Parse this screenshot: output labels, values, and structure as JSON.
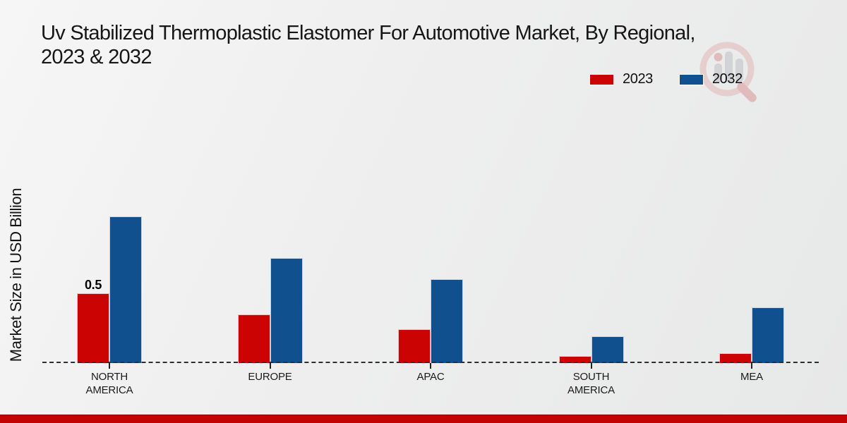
{
  "page": {
    "title_line1": "Uv Stabilized Thermoplastic Elastomer For Automotive Market, By Regional,",
    "title_line2": "2023 & 2032"
  },
  "legend": {
    "items": [
      {
        "label": "2023",
        "color": "#cb0303"
      },
      {
        "label": "2032",
        "color": "#11508f"
      }
    ]
  },
  "axes": {
    "ylabel": "Market Size in USD Billion"
  },
  "watermark": {
    "icon": "magnifier-bars-logo"
  },
  "footer": {
    "accent_color": "#c20404"
  },
  "chart_data": {
    "type": "bar",
    "title": "Uv Stabilized Thermoplastic Elastomer For Automotive Market, By Regional, 2023 & 2032",
    "ylabel": "Market Size in USD Billion",
    "ylim": [
      0,
      1.45
    ],
    "grid": false,
    "legend_position": "top-right",
    "baseline_style": "dashed",
    "categories": [
      "NORTH AMERICA",
      "EUROPE",
      "APAC",
      "SOUTH AMERICA",
      "MEA"
    ],
    "series": [
      {
        "name": "2023",
        "color": "#cb0303",
        "values": [
          0.5,
          0.35,
          0.24,
          0.05,
          0.07
        ],
        "value_labels": [
          "0.5",
          "",
          "",
          "",
          ""
        ]
      },
      {
        "name": "2032",
        "color": "#11508f",
        "values": [
          1.05,
          0.75,
          0.6,
          0.19,
          0.4
        ],
        "value_labels": [
          "",
          "",
          "",
          "",
          ""
        ]
      }
    ]
  }
}
